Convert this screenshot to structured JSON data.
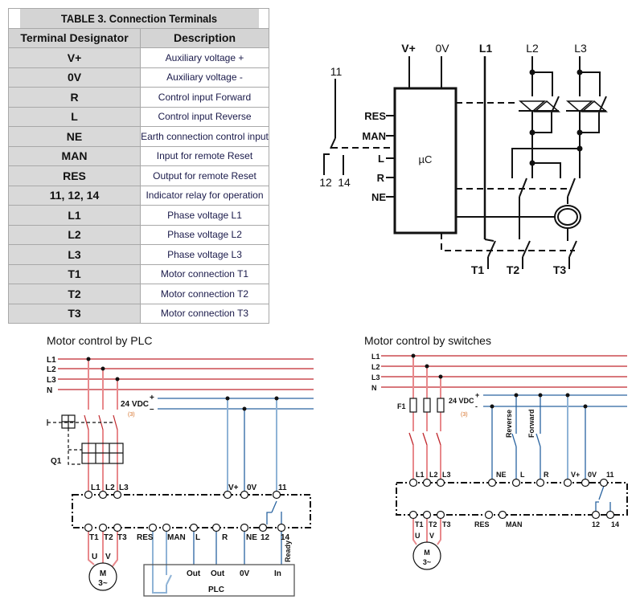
{
  "table": {
    "title": "TABLE 3. Connection Terminals",
    "headers": [
      "Terminal Designator",
      "Description"
    ],
    "rows": [
      [
        "V+",
        "Auxiliary voltage +"
      ],
      [
        "0V",
        "Auxiliary voltage -"
      ],
      [
        "R",
        "Control input Forward"
      ],
      [
        "L",
        "Control input Reverse"
      ],
      [
        "NE",
        "Earth connection control input"
      ],
      [
        "MAN",
        "Input for remote Reset"
      ],
      [
        "RES",
        "Output for remote Reset"
      ],
      [
        "11, 12, 14",
        "Indicator relay for operation"
      ],
      [
        "L1",
        "Phase voltage L1"
      ],
      [
        "L2",
        "Phase voltage L2"
      ],
      [
        "L3",
        "Phase voltage L3"
      ],
      [
        "T1",
        "Motor connection T1"
      ],
      [
        "T2",
        "Motor connection T2"
      ],
      [
        "T3",
        "Motor connection T3"
      ]
    ]
  },
  "block_diagram": {
    "top": [
      "V+",
      "0V",
      "L1",
      "L2",
      "L3"
    ],
    "relay": [
      "11",
      "12",
      "14"
    ],
    "inputs": [
      "RES",
      "MAN",
      "L",
      "R",
      "NE"
    ],
    "controller": "µC",
    "outputs": [
      "T1",
      "T2",
      "T3"
    ]
  },
  "plc_diagram": {
    "title": "Motor control by PLC",
    "rails": [
      "L1",
      "L2",
      "L3",
      "N"
    ],
    "dc": "24 VDC",
    "plus": "+",
    "minus": "–",
    "note": "(3)",
    "breaker": "Q1",
    "top_terminals": [
      "L1",
      "L2",
      "L3",
      "V+",
      "0V",
      "11"
    ],
    "bottom_terminals": [
      "T1",
      "T2",
      "T3",
      "RES",
      "MAN",
      "L",
      "R",
      "NE",
      "12",
      "14"
    ],
    "ready": "Ready",
    "motor": [
      "U",
      "V",
      "M",
      "3~"
    ],
    "plc": {
      "label": "PLC",
      "ports": [
        "Out",
        "Out",
        "0V",
        "In"
      ]
    }
  },
  "switch_diagram": {
    "title": "Motor control by switches",
    "rails": [
      "L1",
      "L2",
      "L3",
      "N"
    ],
    "fuse": "F1",
    "dc": "24 VDC",
    "plus": "+",
    "minus": "-",
    "note": "(3)",
    "switches": [
      "Reverse",
      "Forward"
    ],
    "top_terminals": [
      "L1",
      "L2",
      "L3",
      "NE",
      "L",
      "R",
      "V+",
      "0V",
      "11"
    ],
    "bottom_terminals": [
      "T1",
      "T2",
      "T3",
      "RES",
      "MAN",
      "12",
      "14"
    ],
    "motor": [
      "U",
      "V",
      "M",
      "3~"
    ]
  },
  "colors": {
    "phase": "#c0282d",
    "phase_light": "#e8898c",
    "dc": "#2a64a0",
    "dc_light": "#8fb3d6",
    "note": "#d46a1e"
  }
}
